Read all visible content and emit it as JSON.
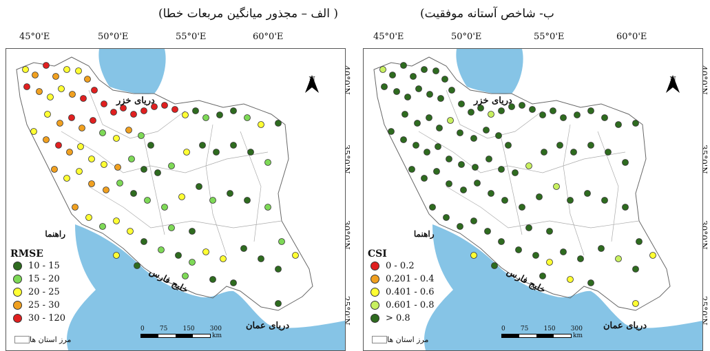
{
  "captions": {
    "left": "( الف – مجذور میانگین مربعات خطا)",
    "right": "ب- شاخص آستانه موفقیت)"
  },
  "longitudes": [
    "45°0'E",
    "50°0'E",
    "55°0'E",
    "60°0'E"
  ],
  "latitudes": [
    "40°0'N",
    "35°0'N",
    "30°0'N",
    "25°0'N"
  ],
  "north": "N",
  "seas": {
    "caspian": "دریای خزر",
    "gulf": "خلیج فارس",
    "oman": "دریای عمان"
  },
  "legend_title": "راهنما",
  "boundary_label": "مرز استان ها",
  "scale": {
    "ticks": [
      "0",
      "75",
      "150",
      "300"
    ],
    "unit": "km"
  },
  "rmse_legend": {
    "heading": "RMSE",
    "items": [
      {
        "label": "10 - 15",
        "color": "#2e6b1f"
      },
      {
        "label": "15 - 20",
        "color": "#7ed957"
      },
      {
        "label": "20 - 25",
        "color": "#ffff33"
      },
      {
        "label": "25 - 30",
        "color": "#f0a020"
      },
      {
        "label": "30 - 120",
        "color": "#e02020"
      }
    ]
  },
  "csi_legend": {
    "heading": "CSI",
    "items": [
      {
        "label": "0 - 0.2",
        "color": "#e02020"
      },
      {
        "label": "0.201 - 0.4",
        "color": "#f0a020"
      },
      {
        "label": "0.401 - 0.6",
        "color": "#ffff33"
      },
      {
        "label": "0.601 - 0.8",
        "color": "#c8f060"
      },
      {
        "label": "> 0.8",
        "color": "#2e6b1f"
      }
    ]
  }
}
